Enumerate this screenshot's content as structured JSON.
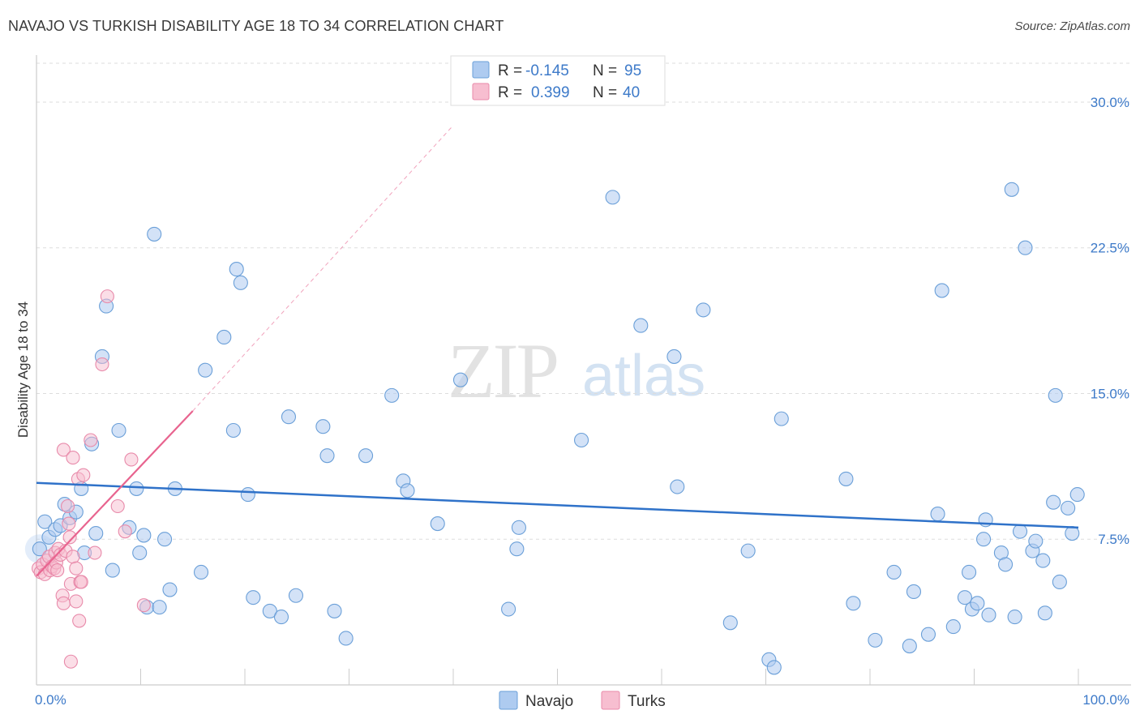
{
  "title": "NAVAJO VS TURKISH DISABILITY AGE 18 TO 34 CORRELATION CHART",
  "source": "Source: ZipAtlas.com",
  "watermark": {
    "zip": "ZIP",
    "atlas": "atlas"
  },
  "colors": {
    "navajo_fill": "#aecbf0",
    "navajo_stroke": "#6a9fd8",
    "navajo_line": "#2f72c9",
    "turks_fill": "#f7bed0",
    "turks_stroke": "#e88aaa",
    "turks_line": "#e8648f",
    "accent_text": "#3d7ac9",
    "grid": "#dddddd"
  },
  "legend": {
    "rows": [
      {
        "r_label": "R =",
        "r_value": "-0.145",
        "n_label": "N =",
        "n_value": "95"
      },
      {
        "r_label": "R =",
        "r_value": "0.399",
        "n_label": "N =",
        "n_value": "40"
      }
    ]
  },
  "chart_data": {
    "type": "scatter",
    "title": "NAVAJO VS TURKISH DISABILITY AGE 18 TO 34 CORRELATION CHART",
    "xlabel": "",
    "ylabel": "Disability Age 18 to 34",
    "xlim": [
      0,
      100
    ],
    "ylim": [
      0,
      32
    ],
    "x_tick_labels": [
      "0.0%",
      "100.0%"
    ],
    "y_ticks": [
      7.5,
      15.0,
      22.5,
      30.0
    ],
    "y_tick_labels": [
      "7.5%",
      "15.0%",
      "22.5%",
      "30.0%"
    ],
    "grid": true,
    "series": [
      {
        "name": "Navajo",
        "r": -0.145,
        "n": 95,
        "trend": {
          "x0": 0,
          "y0": 10.4,
          "x1": 100,
          "y1": 8.1
        },
        "points": [
          [
            0.3,
            7.0
          ],
          [
            0.8,
            8.4
          ],
          [
            1.2,
            7.6
          ],
          [
            1.8,
            8.0
          ],
          [
            2.3,
            8.2
          ],
          [
            2.7,
            9.3
          ],
          [
            3.2,
            8.6
          ],
          [
            3.8,
            8.9
          ],
          [
            4.3,
            10.1
          ],
          [
            4.6,
            6.8
          ],
          [
            5.3,
            12.4
          ],
          [
            5.7,
            7.8
          ],
          [
            6.3,
            16.9
          ],
          [
            6.7,
            19.5
          ],
          [
            7.3,
            5.9
          ],
          [
            7.9,
            13.1
          ],
          [
            8.9,
            8.1
          ],
          [
            9.6,
            10.1
          ],
          [
            9.9,
            6.8
          ],
          [
            10.3,
            7.7
          ],
          [
            10.6,
            4.0
          ],
          [
            11.3,
            23.2
          ],
          [
            11.8,
            4.0
          ],
          [
            12.3,
            7.5
          ],
          [
            12.8,
            4.9
          ],
          [
            13.3,
            10.1
          ],
          [
            15.8,
            5.8
          ],
          [
            16.2,
            16.2
          ],
          [
            18.0,
            17.9
          ],
          [
            18.9,
            13.1
          ],
          [
            19.2,
            21.4
          ],
          [
            19.6,
            20.7
          ],
          [
            20.3,
            9.8
          ],
          [
            20.8,
            4.5
          ],
          [
            22.4,
            3.8
          ],
          [
            23.5,
            3.5
          ],
          [
            24.2,
            13.8
          ],
          [
            24.9,
            4.6
          ],
          [
            27.5,
            13.3
          ],
          [
            27.9,
            11.8
          ],
          [
            28.6,
            3.8
          ],
          [
            29.7,
            2.4
          ],
          [
            31.6,
            11.8
          ],
          [
            34.1,
            14.9
          ],
          [
            35.2,
            10.5
          ],
          [
            35.6,
            10.0
          ],
          [
            38.5,
            8.3
          ],
          [
            40.7,
            15.7
          ],
          [
            45.3,
            3.9
          ],
          [
            46.1,
            7.0
          ],
          [
            46.3,
            8.1
          ],
          [
            52.3,
            12.6
          ],
          [
            55.3,
            25.1
          ],
          [
            58.0,
            18.5
          ],
          [
            61.2,
            16.9
          ],
          [
            61.5,
            10.2
          ],
          [
            64.0,
            19.3
          ],
          [
            66.6,
            3.2
          ],
          [
            68.3,
            6.9
          ],
          [
            70.3,
            1.3
          ],
          [
            70.8,
            0.9
          ],
          [
            71.5,
            13.7
          ],
          [
            77.7,
            10.6
          ],
          [
            78.4,
            4.2
          ],
          [
            80.5,
            2.3
          ],
          [
            82.3,
            5.8
          ],
          [
            83.8,
            2.0
          ],
          [
            84.2,
            4.8
          ],
          [
            85.6,
            2.6
          ],
          [
            86.5,
            8.8
          ],
          [
            86.9,
            20.3
          ],
          [
            88.0,
            3.0
          ],
          [
            89.1,
            4.5
          ],
          [
            89.5,
            5.8
          ],
          [
            89.8,
            3.9
          ],
          [
            90.3,
            4.2
          ],
          [
            90.9,
            7.5
          ],
          [
            91.1,
            8.5
          ],
          [
            91.4,
            3.6
          ],
          [
            92.6,
            6.8
          ],
          [
            93.0,
            6.2
          ],
          [
            93.6,
            25.5
          ],
          [
            93.9,
            3.5
          ],
          [
            94.4,
            7.9
          ],
          [
            94.9,
            22.5
          ],
          [
            95.6,
            6.9
          ],
          [
            95.9,
            7.4
          ],
          [
            96.6,
            6.4
          ],
          [
            96.8,
            3.7
          ],
          [
            97.6,
            9.4
          ],
          [
            97.8,
            14.9
          ],
          [
            98.2,
            5.3
          ],
          [
            99.0,
            9.1
          ],
          [
            99.4,
            7.8
          ],
          [
            99.9,
            9.8
          ]
        ]
      },
      {
        "name": "Turks",
        "r": 0.399,
        "n": 40,
        "trend": {
          "x0": 0,
          "y0": 5.6,
          "x1": 15,
          "y1": 14.1
        },
        "trend_extension": {
          "x0": 15,
          "y0": 14.1,
          "x1": 40,
          "y1": 28.8
        },
        "points": [
          [
            0.2,
            6.0
          ],
          [
            0.4,
            5.8
          ],
          [
            0.6,
            6.2
          ],
          [
            0.8,
            5.7
          ],
          [
            1.0,
            6.4
          ],
          [
            1.2,
            6.6
          ],
          [
            1.3,
            5.9
          ],
          [
            1.5,
            6.1
          ],
          [
            1.7,
            6.0
          ],
          [
            1.8,
            6.8
          ],
          [
            1.9,
            6.3
          ],
          [
            2.0,
            5.9
          ],
          [
            2.1,
            7.0
          ],
          [
            2.3,
            6.7
          ],
          [
            2.5,
            4.6
          ],
          [
            2.6,
            4.2
          ],
          [
            2.6,
            12.1
          ],
          [
            2.8,
            6.9
          ],
          [
            3.0,
            9.2
          ],
          [
            3.1,
            8.3
          ],
          [
            3.2,
            7.6
          ],
          [
            3.3,
            1.2
          ],
          [
            3.3,
            5.2
          ],
          [
            3.5,
            6.6
          ],
          [
            3.5,
            11.7
          ],
          [
            3.8,
            4.3
          ],
          [
            3.8,
            6.0
          ],
          [
            4.0,
            10.6
          ],
          [
            4.1,
            3.3
          ],
          [
            4.2,
            5.3
          ],
          [
            4.3,
            5.3
          ],
          [
            4.5,
            10.8
          ],
          [
            5.2,
            12.6
          ],
          [
            5.6,
            6.8
          ],
          [
            6.3,
            16.5
          ],
          [
            6.8,
            20.0
          ],
          [
            7.8,
            9.2
          ],
          [
            8.5,
            7.9
          ],
          [
            9.1,
            11.6
          ],
          [
            10.3,
            4.1
          ]
        ]
      }
    ]
  },
  "bottom_legend": [
    {
      "label": "Navajo"
    },
    {
      "label": "Turks"
    }
  ]
}
